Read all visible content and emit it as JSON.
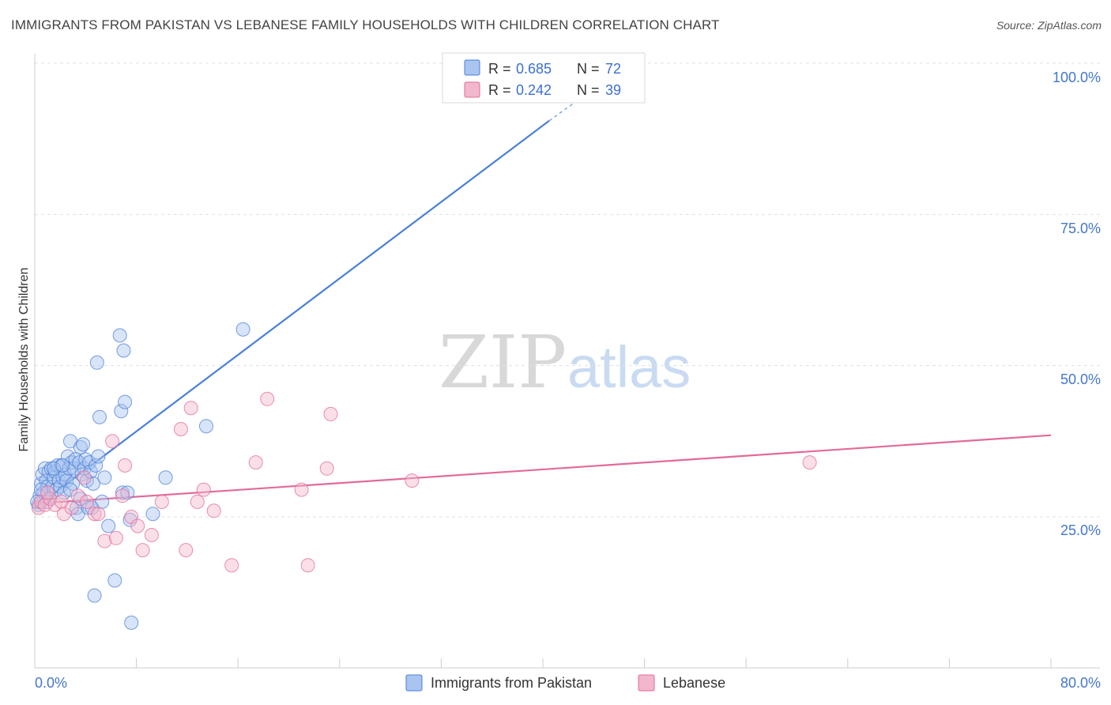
{
  "title": "IMMIGRANTS FROM PAKISTAN VS LEBANESE FAMILY HOUSEHOLDS WITH CHILDREN CORRELATION CHART",
  "source": "Source: ZipAtlas.com",
  "watermark": {
    "zip": "ZIP",
    "atlas": "atlas"
  },
  "colors": {
    "blue": "#4a7fd8",
    "blue_fill": "#a9c4ef",
    "pink": "#e26a98",
    "pink_fill": "#f3b7cd",
    "axis_label": "#4477cc"
  },
  "legend": {
    "series": [
      {
        "r_label": "R =",
        "r_value": "0.685",
        "n_label": "N =",
        "n_value": "72"
      },
      {
        "r_label": "R =",
        "r_value": "0.242",
        "n_label": "N =",
        "n_value": "39"
      }
    ]
  },
  "chart_data": {
    "type": "scatter",
    "title": "IMMIGRANTS FROM PAKISTAN VS LEBANESE FAMILY HOUSEHOLDS WITH CHILDREN CORRELATION CHART",
    "xlabel": "",
    "ylabel": "Family Households with Children",
    "xlim": [
      0,
      80
    ],
    "ylim": [
      0,
      105
    ],
    "x_tick_labels": [
      "0.0%",
      "80.0%"
    ],
    "y_ticks": [
      25,
      50,
      75,
      100
    ],
    "y_tick_labels": [
      "25.0%",
      "50.0%",
      "75.0%",
      "100.0%"
    ],
    "legend_position": "top-center",
    "series": [
      {
        "name": "Immigrants from Pakistan",
        "color": "#4a7fd8",
        "trend": {
          "x0": 0,
          "y0": 26.5,
          "x1": 40.5,
          "y1": 90.5,
          "dash_to_x": 42.5,
          "dash_to_y": 93.5
        },
        "points": [
          [
            0.3,
            27.0
          ],
          [
            0.4,
            28.5
          ],
          [
            0.5,
            30.5
          ],
          [
            0.6,
            32.0
          ],
          [
            0.7,
            29.0
          ],
          [
            0.8,
            33.0
          ],
          [
            0.9,
            31.0
          ],
          [
            1.0,
            30.0
          ],
          [
            1.1,
            32.5
          ],
          [
            1.2,
            28.0
          ],
          [
            1.3,
            33.0
          ],
          [
            1.4,
            30.0
          ],
          [
            1.5,
            31.5
          ],
          [
            1.6,
            32.5
          ],
          [
            1.7,
            29.5
          ],
          [
            1.8,
            33.5
          ],
          [
            1.9,
            31.0
          ],
          [
            2.0,
            30.0
          ],
          [
            2.1,
            33.5
          ],
          [
            2.2,
            31.5
          ],
          [
            2.3,
            29.0
          ],
          [
            2.4,
            32.0
          ],
          [
            2.5,
            31.0
          ],
          [
            2.6,
            35.0
          ],
          [
            2.7,
            33.0
          ],
          [
            2.8,
            37.5
          ],
          [
            2.9,
            34.0
          ],
          [
            3.0,
            30.5
          ],
          [
            3.1,
            33.0
          ],
          [
            3.2,
            34.5
          ],
          [
            3.3,
            26.5
          ],
          [
            3.4,
            25.5
          ],
          [
            3.5,
            34.0
          ],
          [
            3.6,
            36.5
          ],
          [
            3.7,
            32.0
          ],
          [
            3.8,
            37.0
          ],
          [
            3.9,
            33.0
          ],
          [
            4.0,
            34.5
          ],
          [
            4.1,
            31.0
          ],
          [
            4.2,
            26.5
          ],
          [
            4.3,
            34.0
          ],
          [
            4.4,
            32.5
          ],
          [
            4.6,
            30.5
          ],
          [
            4.7,
            12.0
          ],
          [
            4.8,
            33.5
          ],
          [
            4.9,
            50.5
          ],
          [
            5.0,
            35.0
          ],
          [
            5.1,
            41.5
          ],
          [
            5.3,
            27.5
          ],
          [
            5.5,
            31.5
          ],
          [
            5.8,
            23.5
          ],
          [
            6.3,
            14.5
          ],
          [
            6.7,
            55.0
          ],
          [
            6.8,
            42.5
          ],
          [
            6.9,
            29.0
          ],
          [
            7.0,
            52.5
          ],
          [
            7.1,
            44.0
          ],
          [
            7.3,
            29.0
          ],
          [
            7.5,
            24.5
          ],
          [
            7.6,
            7.5
          ],
          [
            9.3,
            25.5
          ],
          [
            10.3,
            31.5
          ],
          [
            13.5,
            40.0
          ],
          [
            16.4,
            56.0
          ],
          [
            0.2,
            27.5
          ],
          [
            0.5,
            29.5
          ],
          [
            1.0,
            27.5
          ],
          [
            1.5,
            33.0
          ],
          [
            2.2,
            33.5
          ],
          [
            2.8,
            29.5
          ],
          [
            3.6,
            28.0
          ],
          [
            4.5,
            26.5
          ]
        ]
      },
      {
        "name": "Lebanese",
        "color": "#e26a98",
        "trend": {
          "x0": 0,
          "y0": 27.2,
          "x1": 80,
          "y1": 38.5
        },
        "points": [
          [
            0.3,
            26.5
          ],
          [
            0.5,
            27.5
          ],
          [
            0.8,
            27.0
          ],
          [
            1.2,
            28.0
          ],
          [
            1.6,
            27.0
          ],
          [
            2.1,
            27.5
          ],
          [
            2.3,
            25.5
          ],
          [
            2.9,
            26.5
          ],
          [
            3.4,
            28.5
          ],
          [
            3.9,
            31.5
          ],
          [
            4.1,
            27.5
          ],
          [
            4.7,
            25.5
          ],
          [
            5.0,
            25.5
          ],
          [
            5.5,
            21.0
          ],
          [
            6.1,
            37.5
          ],
          [
            6.4,
            21.5
          ],
          [
            6.9,
            28.5
          ],
          [
            7.1,
            33.5
          ],
          [
            7.6,
            25.0
          ],
          [
            8.1,
            23.5
          ],
          [
            8.5,
            19.5
          ],
          [
            9.2,
            22.0
          ],
          [
            10.0,
            27.5
          ],
          [
            11.5,
            39.5
          ],
          [
            11.9,
            19.5
          ],
          [
            12.3,
            43.0
          ],
          [
            12.8,
            27.5
          ],
          [
            13.3,
            29.5
          ],
          [
            14.1,
            26.0
          ],
          [
            15.5,
            17.0
          ],
          [
            17.4,
            34.0
          ],
          [
            18.3,
            44.5
          ],
          [
            21.0,
            29.5
          ],
          [
            21.5,
            17.0
          ],
          [
            23.0,
            33.0
          ],
          [
            23.3,
            42.0
          ],
          [
            29.7,
            31.0
          ],
          [
            61.0,
            34.0
          ],
          [
            1.0,
            29.0
          ]
        ]
      }
    ]
  },
  "bottom_legend": [
    {
      "label": "Immigrants from Pakistan"
    },
    {
      "label": "Lebanese"
    }
  ]
}
